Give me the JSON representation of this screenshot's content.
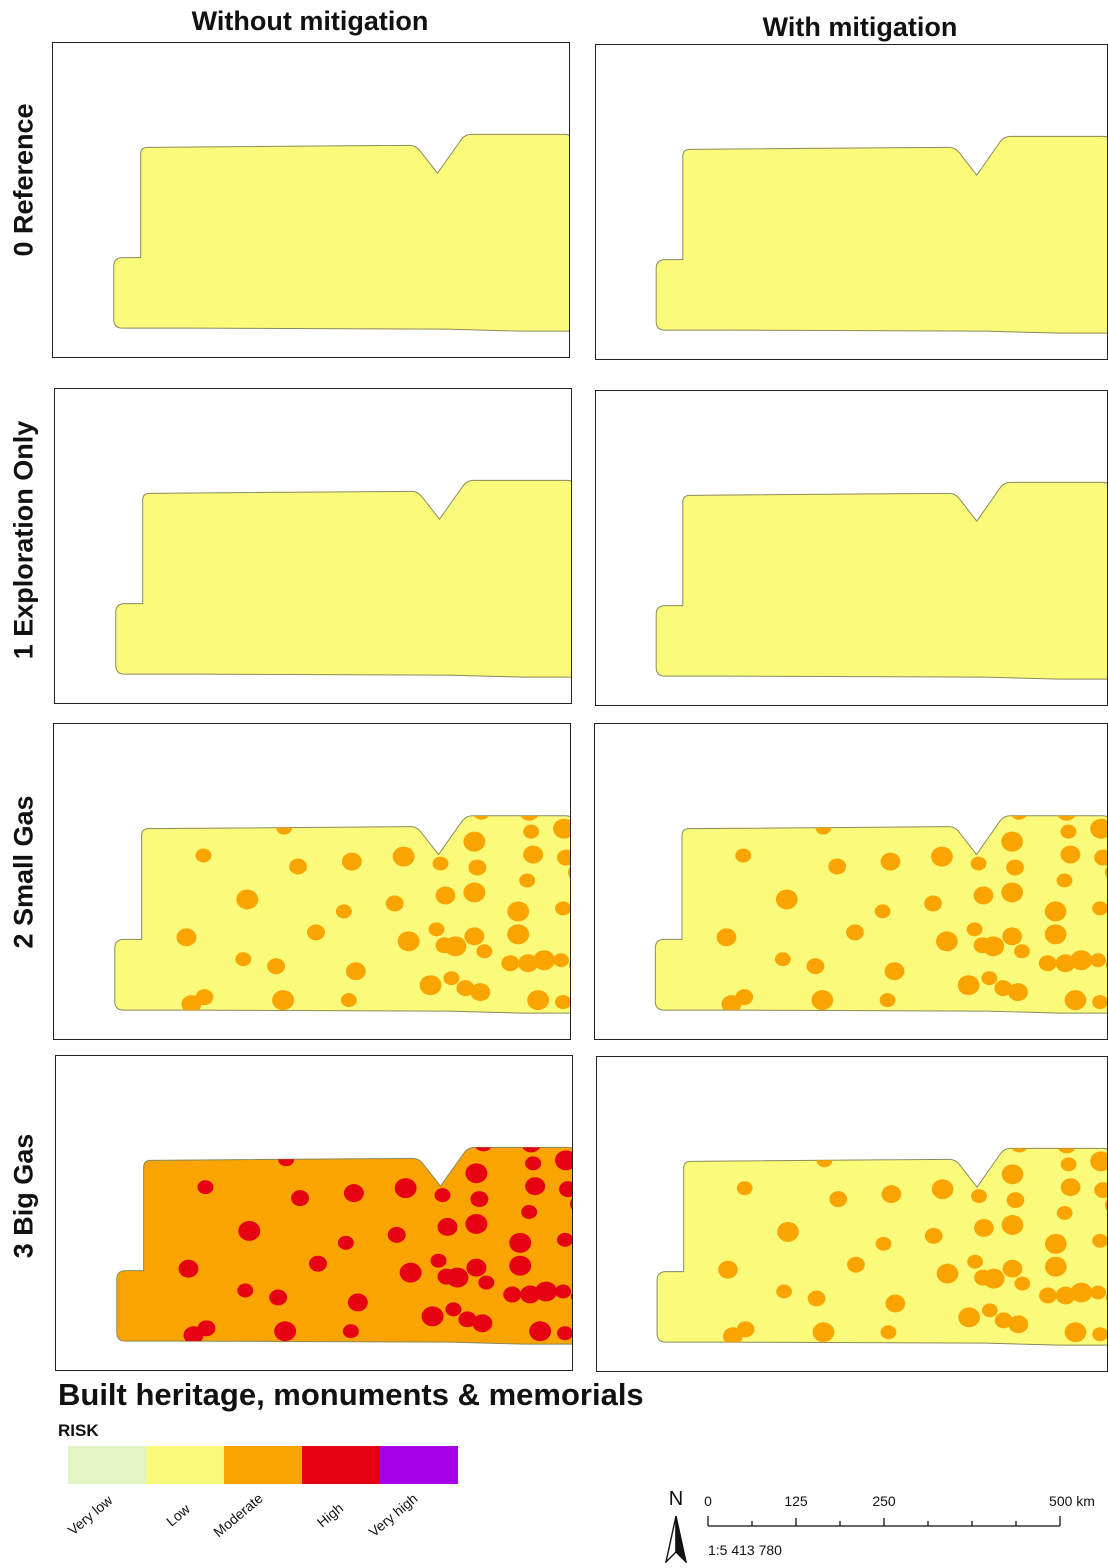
{
  "columns": [
    {
      "label": "Without mitigation"
    },
    {
      "label": "With mitigation"
    }
  ],
  "rows": [
    {
      "label": "0 Reference"
    },
    {
      "label": "1 Exploration Only"
    },
    {
      "label": "2 Small Gas"
    },
    {
      "label": "3 Big Gas"
    }
  ],
  "panels": [
    {
      "row": 0,
      "col": 0,
      "base_class": "Low",
      "spot_class": null
    },
    {
      "row": 0,
      "col": 1,
      "base_class": "Low",
      "spot_class": null
    },
    {
      "row": 1,
      "col": 0,
      "base_class": "Low",
      "spot_class": null
    },
    {
      "row": 1,
      "col": 1,
      "base_class": "Low",
      "spot_class": null
    },
    {
      "row": 2,
      "col": 0,
      "base_class": "Low",
      "spot_class": "Moderate"
    },
    {
      "row": 2,
      "col": 1,
      "base_class": "Low",
      "spot_class": "Moderate"
    },
    {
      "row": 3,
      "col": 0,
      "base_class": "Moderate",
      "spot_class": "High"
    },
    {
      "row": 3,
      "col": 1,
      "base_class": "Low",
      "spot_class": "Moderate"
    }
  ],
  "legend": {
    "title": "Built heritage, monuments & memorials",
    "risk_label": "RISK",
    "classes": [
      {
        "name": "Very low",
        "color": "#e3f5c5"
      },
      {
        "name": "Low",
        "color": "#fbfb7b"
      },
      {
        "name": "Moderate",
        "color": "#f9a400"
      },
      {
        "name": "High",
        "color": "#e50012"
      },
      {
        "name": "Very high",
        "color": "#a600e8"
      }
    ]
  },
  "north_arrow": {
    "letter": "N"
  },
  "scale_bar": {
    "ticks": [
      "0",
      "125",
      "250",
      "500 km"
    ],
    "ratio": "1:5 413 780"
  },
  "colors": {
    "outline": "#8a8a5a",
    "frame": "#222222"
  }
}
